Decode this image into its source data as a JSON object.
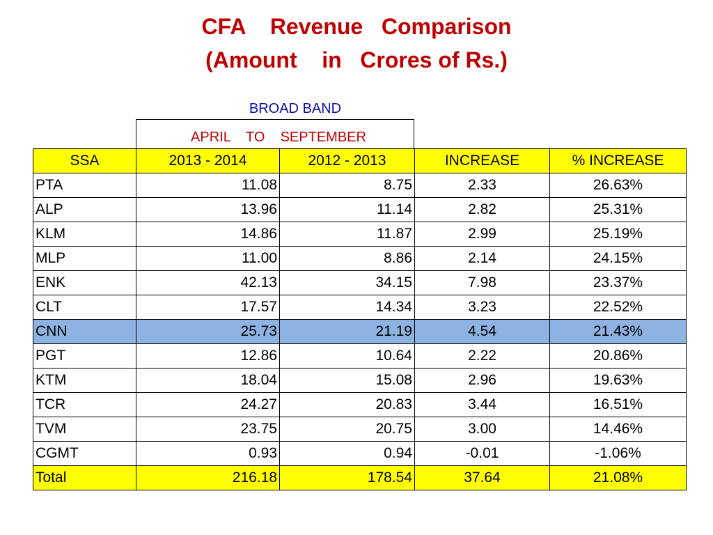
{
  "title_line1": "CFA    Revenue   Comparison",
  "title_line2": "(Amount    in   Crores of Rs.)",
  "section_label": "BROAD BAND",
  "period_label": "APRIL    TO    SEPTEMBER",
  "colors": {
    "title": "#c00000",
    "section_label": "#0a10a8",
    "header_fill": "#ffff00",
    "highlight_fill": "#8db3e2",
    "total_fill": "#ffff00"
  },
  "table": {
    "headers": [
      "SSA",
      "2013 - 2014",
      "2012 - 2013",
      "INCREASE",
      "%  INCREASE"
    ],
    "rows": [
      [
        "PTA",
        "11.08",
        "8.75",
        "2.33",
        "26.63%"
      ],
      [
        "ALP",
        "13.96",
        "11.14",
        "2.82",
        "25.31%"
      ],
      [
        "KLM",
        "14.86",
        "11.87",
        "2.99",
        "25.19%"
      ],
      [
        "MLP",
        "11.00",
        "8.86",
        "2.14",
        "24.15%"
      ],
      [
        "ENK",
        "42.13",
        "34.15",
        "7.98",
        "23.37%"
      ],
      [
        "CLT",
        "17.57",
        "14.34",
        "3.23",
        "22.52%"
      ],
      [
        "CNN",
        "25.73",
        "21.19",
        "4.54",
        "21.43%"
      ],
      [
        "PGT",
        "12.86",
        "10.64",
        "2.22",
        "20.86%"
      ],
      [
        "KTM",
        "18.04",
        "15.08",
        "2.96",
        "19.63%"
      ],
      [
        "TCR",
        "24.27",
        "20.83",
        "3.44",
        "16.51%"
      ],
      [
        "TVM",
        "23.75",
        "20.75",
        "3.00",
        "14.46%"
      ],
      [
        "CGMT",
        "0.93",
        "0.94",
        "-0.01",
        "-1.06%"
      ]
    ],
    "highlighted_row": "CNN",
    "total": [
      "Total",
      "216.18",
      "178.54",
      "37.64",
      "21.08%"
    ]
  }
}
